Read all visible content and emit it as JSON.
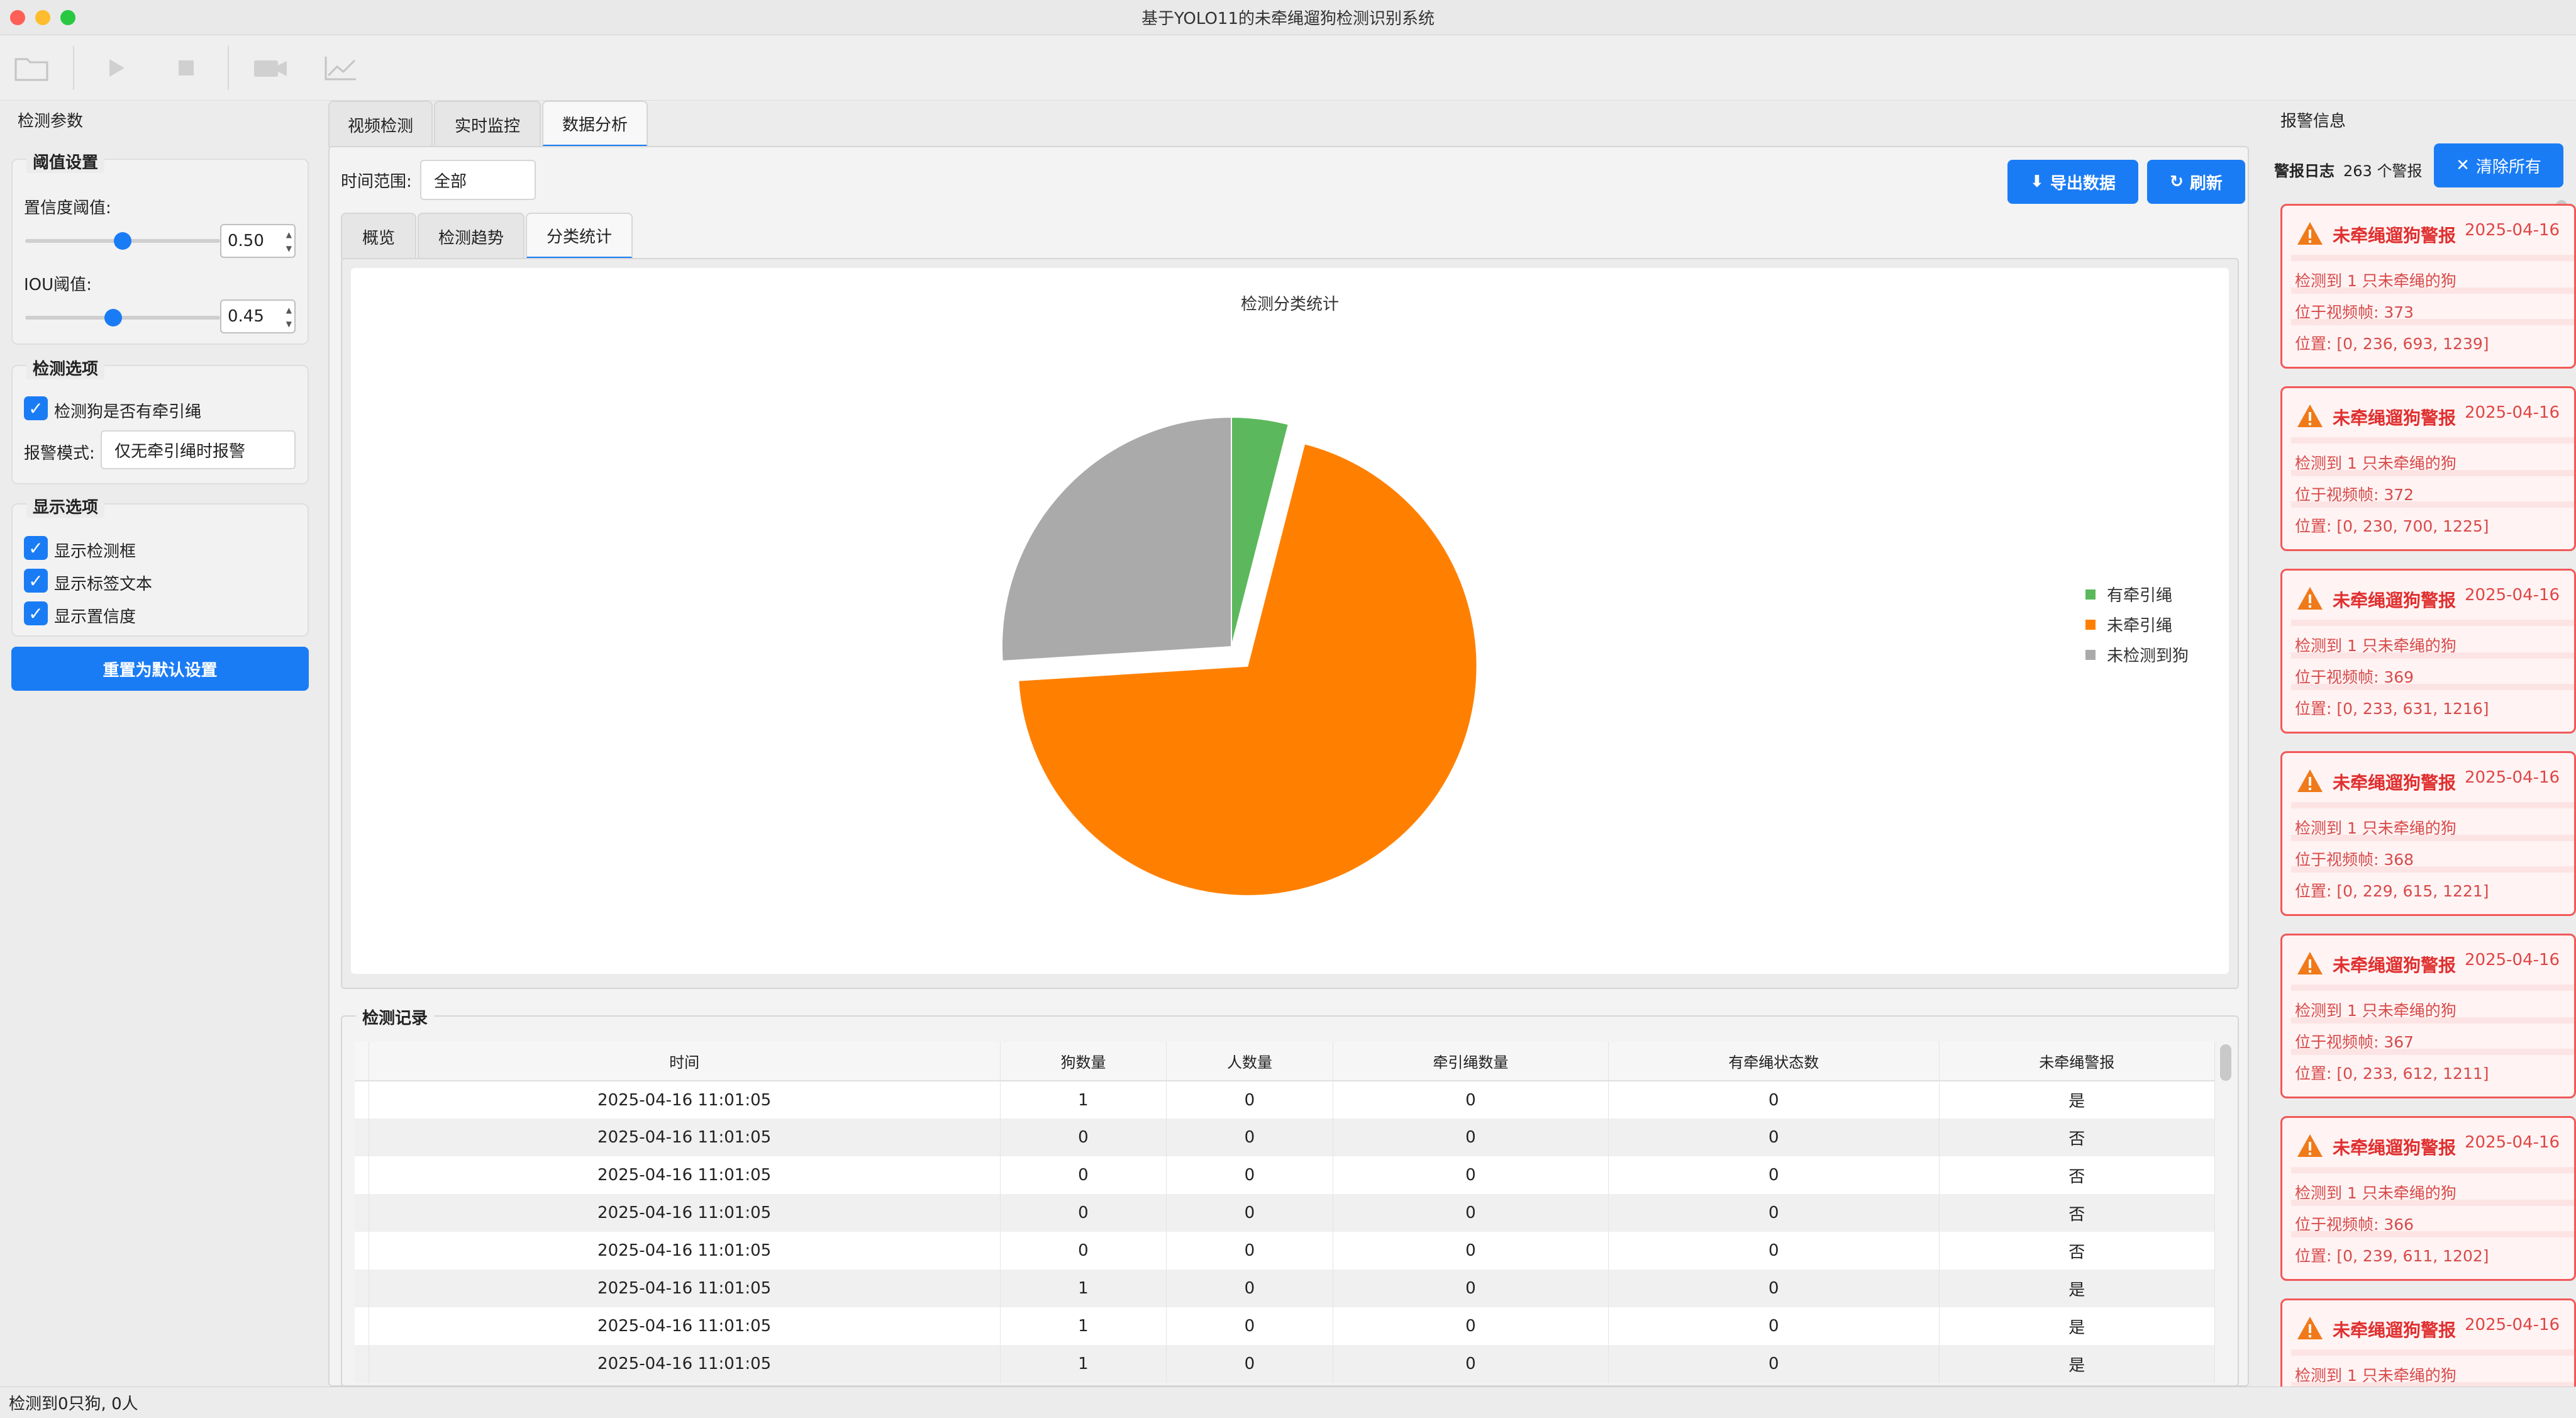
{
  "window": {
    "title": "基于YOLO11的未牵绳遛狗检测识别系统"
  },
  "left": {
    "panel_title": "检测参数",
    "threshold_group": "阈值设置",
    "confidence_label": "置信度阈值:",
    "confidence_value": "0.50",
    "confidence_level": 0.5,
    "iou_label": "IOU阈值:",
    "iou_value": "0.45",
    "iou_level": 0.45,
    "detect_group": "检测选项",
    "leash_check_label": "检测狗是否有牵引绳",
    "alarm_mode_label": "报警模式:",
    "alarm_mode_value": "仅无牵引绳时报警",
    "display_group": "显示选项",
    "show_box_label": "显示检测框",
    "show_label_text": "显示标签文本",
    "show_conf_label": "显示置信度",
    "reset_button": "重置为默认设置"
  },
  "center": {
    "tabs": [
      "视频检测",
      "实时监控",
      "数据分析"
    ],
    "time_range_label": "时间范围:",
    "time_range_value": "全部",
    "export_button": "导出数据",
    "refresh_button": "刷新",
    "subtabs": [
      "概览",
      "检测趋势",
      "分类统计"
    ],
    "records_title": "检测记录",
    "table": {
      "headers": [
        "时间",
        "狗数量",
        "人数量",
        "牵引绳数量",
        "有牵绳状态数",
        "未牵绳警报"
      ],
      "rows": [
        [
          "2025-04-16 11:01:05",
          "1",
          "0",
          "0",
          "0",
          "是"
        ],
        [
          "2025-04-16 11:01:05",
          "0",
          "0",
          "0",
          "0",
          "否"
        ],
        [
          "2025-04-16 11:01:05",
          "0",
          "0",
          "0",
          "0",
          "否"
        ],
        [
          "2025-04-16 11:01:05",
          "0",
          "0",
          "0",
          "0",
          "否"
        ],
        [
          "2025-04-16 11:01:05",
          "0",
          "0",
          "0",
          "0",
          "否"
        ],
        [
          "2025-04-16 11:01:05",
          "1",
          "0",
          "0",
          "0",
          "是"
        ],
        [
          "2025-04-16 11:01:05",
          "1",
          "0",
          "0",
          "0",
          "是"
        ],
        [
          "2025-04-16 11:01:05",
          "1",
          "0",
          "0",
          "0",
          "是"
        ]
      ]
    }
  },
  "chart_data": {
    "type": "pie",
    "title": "检测分类统计",
    "categories": [
      "有牵引绳",
      "未牵引绳",
      "未检测到狗"
    ],
    "values": [
      4,
      70,
      26
    ],
    "colors": [
      "#5cb85c",
      "#ff8000",
      "#aaaaaa"
    ],
    "exploded": "未牵引绳",
    "legend": "right"
  },
  "right": {
    "panel_title": "报警信息",
    "log_label": "警报日志",
    "count_text": "263 个警报",
    "clear_button": "清除所有",
    "alerts": [
      {
        "title": "未牵绳遛狗警报",
        "time": "2025-04-16",
        "line1": "检测到 1 只未牵绳的狗",
        "frame": "位于视频帧: 373",
        "pos": "位置: [0, 236, 693, 1239]"
      },
      {
        "title": "未牵绳遛狗警报",
        "time": "2025-04-16",
        "line1": "检测到 1 只未牵绳的狗",
        "frame": "位于视频帧: 372",
        "pos": "位置: [0, 230, 700, 1225]"
      },
      {
        "title": "未牵绳遛狗警报",
        "time": "2025-04-16",
        "line1": "检测到 1 只未牵绳的狗",
        "frame": "位于视频帧: 369",
        "pos": "位置: [0, 233, 631, 1216]"
      },
      {
        "title": "未牵绳遛狗警报",
        "time": "2025-04-16",
        "line1": "检测到 1 只未牵绳的狗",
        "frame": "位于视频帧: 368",
        "pos": "位置: [0, 229, 615, 1221]"
      },
      {
        "title": "未牵绳遛狗警报",
        "time": "2025-04-16",
        "line1": "检测到 1 只未牵绳的狗",
        "frame": "位于视频帧: 367",
        "pos": "位置: [0, 233, 612, 1211]"
      },
      {
        "title": "未牵绳遛狗警报",
        "time": "2025-04-16",
        "line1": "检测到 1 只未牵绳的狗",
        "frame": "位于视频帧: 366",
        "pos": "位置: [0, 239, 611, 1202]"
      },
      {
        "title": "未牵绳遛狗警报",
        "time": "2025-04-16",
        "line1": "检测到 1 只未牵绳的狗",
        "frame": "",
        "pos": ""
      }
    ]
  },
  "statusbar": {
    "text": "检测到0只狗, 0人"
  }
}
